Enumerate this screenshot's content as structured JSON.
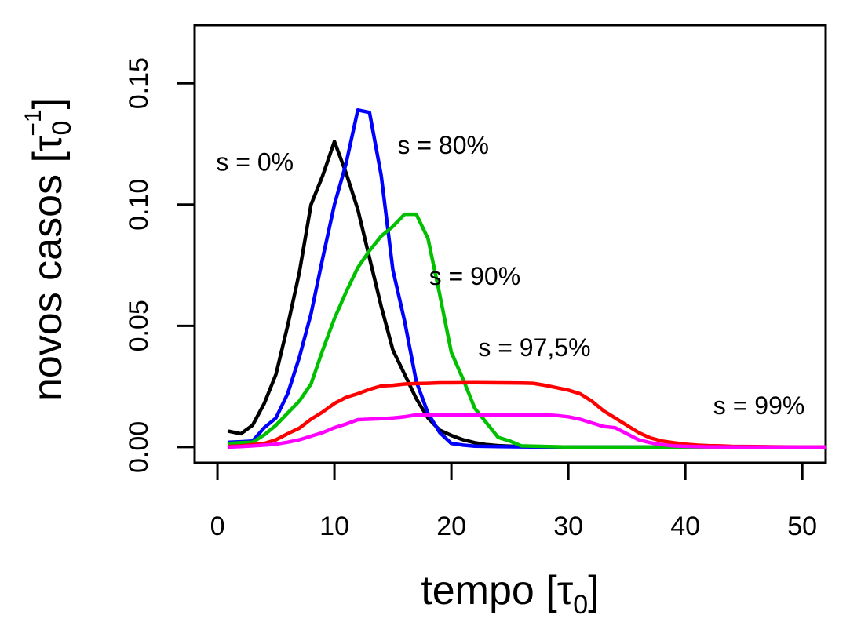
{
  "chart_data": {
    "type": "line",
    "title": "",
    "xlabel": "tempo",
    "xlabel_unit": "τ",
    "xlabel_unit_sub": "0",
    "ylabel": "novos casos",
    "ylabel_unit": "τ",
    "ylabel_unit_sub": "0",
    "ylabel_unit_sup": "−1",
    "xlim": [
      -1.95,
      52
    ],
    "ylim": [
      -0.0065,
      0.174
    ],
    "xticks": [
      0,
      10,
      20,
      30,
      40,
      50
    ],
    "xtick_labels": [
      "0",
      "10",
      "20",
      "30",
      "40",
      "50"
    ],
    "yticks": [
      0.0,
      0.05,
      0.1,
      0.15
    ],
    "ytick_labels": [
      "0.00",
      "0.05",
      "0.10",
      "0.15"
    ],
    "grid": false,
    "legend": "none (inline annotations)",
    "series": [
      {
        "name": "s = 0%",
        "color": "#000000",
        "x": [
          1,
          2,
          3,
          4,
          5,
          6,
          7,
          8,
          9,
          10,
          11,
          12,
          13,
          14,
          15,
          16,
          17,
          18,
          19,
          20,
          21,
          22,
          23,
          24,
          25,
          26,
          28,
          30,
          35,
          40,
          45,
          52
        ],
        "y": [
          0.0065,
          0.0055,
          0.009,
          0.018,
          0.03,
          0.05,
          0.072,
          0.1,
          0.112,
          0.126,
          0.113,
          0.098,
          0.078,
          0.058,
          0.04,
          0.03,
          0.02,
          0.012,
          0.007,
          0.0048,
          0.003,
          0.0018,
          0.001,
          0.0006,
          0.0004,
          0.0002,
          0.0001,
          0.0,
          0.0,
          0.0,
          0.0,
          0.0
        ]
      },
      {
        "name": "s = 80%",
        "color": "#0000ff",
        "x": [
          1,
          2,
          3,
          4,
          5,
          6,
          7,
          8,
          9,
          10,
          11,
          12,
          13,
          14,
          15,
          16,
          17,
          18,
          19,
          20,
          21,
          22,
          24,
          26,
          30,
          40,
          52
        ],
        "y": [
          0.002,
          0.0022,
          0.0025,
          0.008,
          0.012,
          0.022,
          0.037,
          0.055,
          0.078,
          0.1,
          0.117,
          0.139,
          0.138,
          0.112,
          0.073,
          0.052,
          0.027,
          0.014,
          0.006,
          0.0015,
          0.0008,
          0.0004,
          0.0002,
          0.0001,
          0.0,
          0.0,
          0.0
        ]
      },
      {
        "name": "s = 90%",
        "color": "#00c000",
        "x": [
          1,
          2,
          3,
          4,
          5,
          6,
          7,
          8,
          9,
          10,
          11,
          12,
          13,
          14,
          15,
          16,
          17,
          18,
          19,
          20,
          21,
          22,
          23,
          24,
          25,
          26,
          30,
          40,
          52
        ],
        "y": [
          0.0015,
          0.0018,
          0.002,
          0.005,
          0.009,
          0.014,
          0.019,
          0.026,
          0.04,
          0.053,
          0.064,
          0.074,
          0.081,
          0.087,
          0.091,
          0.096,
          0.096,
          0.086,
          0.063,
          0.039,
          0.028,
          0.016,
          0.01,
          0.004,
          0.0025,
          0.0005,
          0.0,
          0.0,
          0.0
        ]
      },
      {
        "name": "s = 97,5%",
        "color": "#ff0000",
        "x": [
          1,
          2,
          3,
          4,
          5,
          6,
          7,
          8,
          9,
          10,
          11,
          12,
          13,
          14,
          15,
          16,
          17,
          18,
          19,
          20,
          22,
          24,
          26,
          27,
          28,
          29,
          30,
          31,
          32,
          33,
          34,
          35,
          36,
          37,
          38,
          39,
          40,
          41,
          42,
          43,
          44,
          46,
          48,
          52
        ],
        "y": [
          0.0003,
          0.0005,
          0.001,
          0.0015,
          0.003,
          0.0055,
          0.0078,
          0.0115,
          0.0145,
          0.018,
          0.0205,
          0.022,
          0.0238,
          0.0252,
          0.0255,
          0.026,
          0.0262,
          0.0263,
          0.0265,
          0.0265,
          0.0266,
          0.0265,
          0.0264,
          0.0263,
          0.0255,
          0.0245,
          0.0235,
          0.022,
          0.019,
          0.015,
          0.012,
          0.009,
          0.006,
          0.0038,
          0.0025,
          0.0018,
          0.0012,
          0.0008,
          0.0006,
          0.0005,
          0.0003,
          0.0002,
          0.0001,
          0.0
        ]
      },
      {
        "name": "s = 99%",
        "color": "#ff00ff",
        "x": [
          1,
          2,
          3,
          4,
          5,
          6,
          7,
          8,
          9,
          10,
          11,
          12,
          13,
          14,
          15,
          16,
          17,
          18,
          20,
          22,
          24,
          26,
          28,
          29,
          30,
          31,
          32,
          33,
          34,
          35,
          36,
          37,
          38,
          39,
          40,
          42,
          46,
          52
        ],
        "y": [
          0.0,
          0.0002,
          0.0005,
          0.0008,
          0.0012,
          0.002,
          0.003,
          0.0045,
          0.006,
          0.008,
          0.0095,
          0.0113,
          0.0115,
          0.0117,
          0.012,
          0.0125,
          0.0133,
          0.0132,
          0.0133,
          0.0133,
          0.0133,
          0.0133,
          0.0133,
          0.013,
          0.0125,
          0.0115,
          0.01,
          0.0085,
          0.008,
          0.0055,
          0.003,
          0.0018,
          0.001,
          0.0005,
          0.0003,
          0.0001,
          0.0,
          0.0
        ]
      }
    ],
    "annotations": [
      {
        "text": "s = 0%",
        "x": 3.2,
        "y": 0.114
      },
      {
        "text": "s = 80%",
        "x": 19.3,
        "y": 0.121
      },
      {
        "text": "s = 90%",
        "x": 22.0,
        "y": 0.067
      },
      {
        "text": "s = 97,5%",
        "x": 27.1,
        "y": 0.0375
      },
      {
        "text": "s = 99%",
        "x": 46.3,
        "y": 0.0135
      }
    ]
  }
}
